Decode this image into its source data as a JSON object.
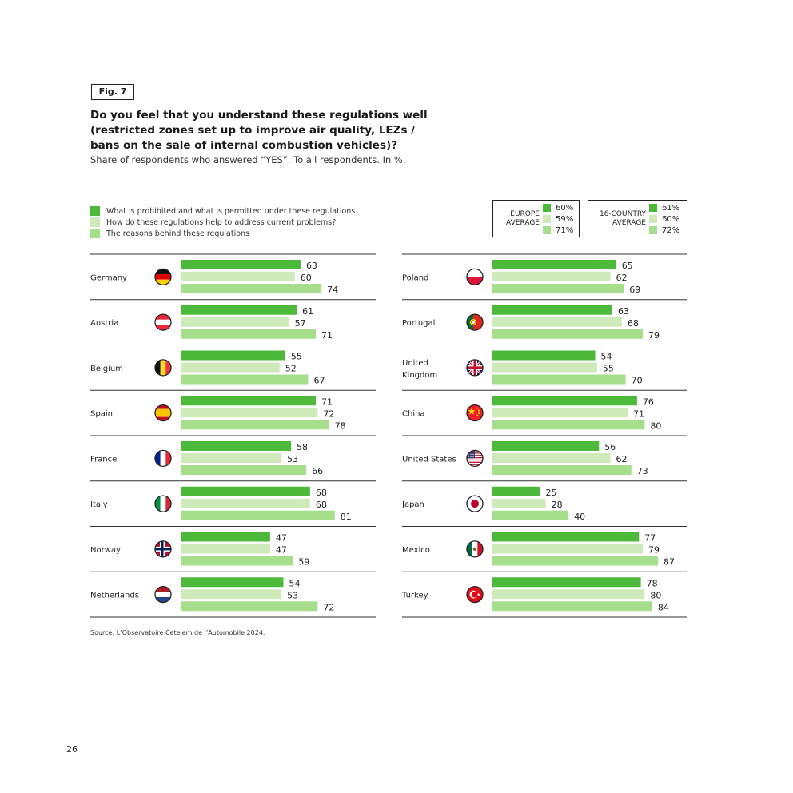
{
  "figure": {
    "tag": "Fig. 7",
    "title": "Do you feel that you understand these regulations well (restricted zones set up to improve air quality, LEZs / bans on the sale of internal combustion vehicles)?",
    "subtitle": "Share of respondents who answered “YES”. To all respondents. In %.",
    "source": "Source: L’Observatoire Cetelem de l’Automobile 2024.",
    "page_number": "26"
  },
  "colors": {
    "s1": "#4cb93a",
    "s2": "#cfeaba",
    "s3": "#a6de8c"
  },
  "legend": [
    {
      "label": "What is prohibited and what is permitted under these regulations"
    },
    {
      "label": "How do these regulations help to address current problems?"
    },
    {
      "label": "The reasons behind these regulations"
    }
  ],
  "averages": [
    {
      "label_line1": "EUROPE",
      "label_line2": "AVERAGE",
      "values": [
        "60%",
        "59%",
        "71%"
      ]
    },
    {
      "label_line1": "16-COUNTRY",
      "label_line2": "AVERAGE",
      "values": [
        "61%",
        "60%",
        "72%"
      ]
    }
  ],
  "chart_data": {
    "type": "bar",
    "orientation": "horizontal",
    "series": [
      {
        "name": "What is prohibited and what is permitted under these regulations"
      },
      {
        "name": "How do these regulations help to address current problems?"
      },
      {
        "name": "The reasons behind these regulations"
      }
    ],
    "xlim": [
      0,
      100
    ],
    "panels": [
      {
        "countries": [
          {
            "name": "Germany",
            "flag": "germany-flag-icon",
            "values": [
              63,
              60,
              74
            ]
          },
          {
            "name": "Austria",
            "flag": "austria-flag-icon",
            "values": [
              61,
              57,
              71
            ]
          },
          {
            "name": "Belgium",
            "flag": "belgium-flag-icon",
            "values": [
              55,
              52,
              67
            ]
          },
          {
            "name": "Spain",
            "flag": "spain-flag-icon",
            "values": [
              71,
              72,
              78
            ]
          },
          {
            "name": "France",
            "flag": "france-flag-icon",
            "values": [
              58,
              53,
              66
            ]
          },
          {
            "name": "Italy",
            "flag": "italy-flag-icon",
            "values": [
              68,
              68,
              81
            ]
          },
          {
            "name": "Norway",
            "flag": "norway-flag-icon",
            "values": [
              47,
              47,
              59
            ]
          },
          {
            "name": "Netherlands",
            "flag": "netherlands-flag-icon",
            "values": [
              54,
              53,
              72
            ]
          }
        ]
      },
      {
        "countries": [
          {
            "name": "Poland",
            "flag": "poland-flag-icon",
            "values": [
              65,
              62,
              69
            ]
          },
          {
            "name": "Portugal",
            "flag": "portugal-flag-icon",
            "values": [
              63,
              68,
              79
            ]
          },
          {
            "name": "United Kingdom",
            "flag": "united-kingdom-flag-icon",
            "values": [
              54,
              55,
              70
            ]
          },
          {
            "name": "China",
            "flag": "china-flag-icon",
            "values": [
              76,
              71,
              80
            ]
          },
          {
            "name": "United States",
            "flag": "united-states-flag-icon",
            "values": [
              56,
              62,
              73
            ]
          },
          {
            "name": "Japan",
            "flag": "japan-flag-icon",
            "values": [
              25,
              28,
              40
            ]
          },
          {
            "name": "Mexico",
            "flag": "mexico-flag-icon",
            "values": [
              77,
              79,
              87
            ]
          },
          {
            "name": "Turkey",
            "flag": "turkey-flag-icon",
            "values": [
              78,
              80,
              84
            ]
          }
        ]
      }
    ]
  }
}
